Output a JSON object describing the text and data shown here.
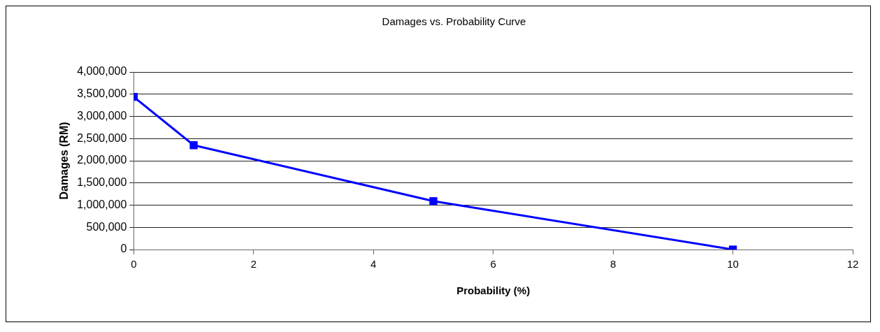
{
  "chart_data": {
    "type": "line",
    "title": "Damages vs. Probability Curve",
    "xlabel": "Probability (%)",
    "ylabel": "Damages (RM)",
    "x": [
      0,
      1,
      5,
      10
    ],
    "series": [
      {
        "color": "#0000ff",
        "values": [
          3440000,
          2350000,
          1090000,
          0
        ]
      }
    ],
    "xlim": [
      0,
      12
    ],
    "xticks": [
      0,
      2,
      4,
      6,
      8,
      10,
      12
    ],
    "ylim": [
      0,
      4000000
    ],
    "yticks": [
      {
        "value": 0,
        "label": "0"
      },
      {
        "value": 500000,
        "label": "500,000"
      },
      {
        "value": 1000000,
        "label": "1,000,000"
      },
      {
        "value": 1500000,
        "label": "1,500,000"
      },
      {
        "value": 2000000,
        "label": "2,000,000"
      },
      {
        "value": 2500000,
        "label": "2,500,000"
      },
      {
        "value": 3000000,
        "label": "3,000,000"
      },
      {
        "value": 3500000,
        "label": "3,500,000"
      },
      {
        "value": 4000000,
        "label": "4,000,000"
      }
    ],
    "grid": "y",
    "legend": false,
    "marker": "square",
    "line_style": "solid"
  }
}
